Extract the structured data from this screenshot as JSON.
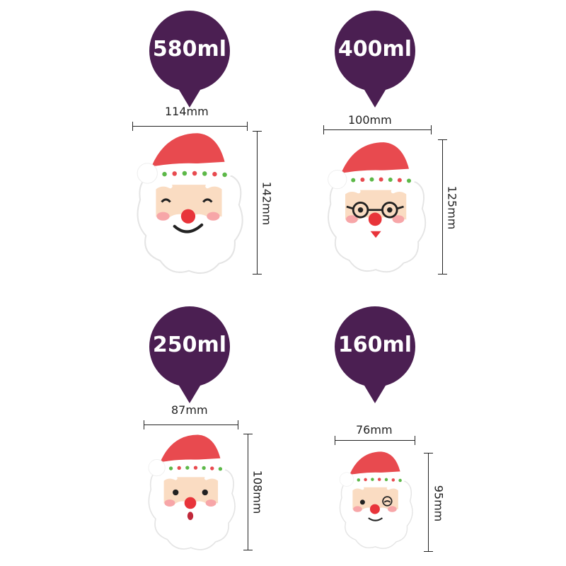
{
  "colors": {
    "pin": "#4b1f52",
    "hat": "#e84a4f",
    "skin": "#fadcc2",
    "nose": "#e8343a",
    "dot_green": "#5cb848",
    "dot_red": "#e84a4f"
  },
  "items": [
    {
      "volume": "580ml",
      "width": "114mm",
      "height": "142mm",
      "face": "smile"
    },
    {
      "volume": "400ml",
      "width": "100mm",
      "height": "125mm",
      "face": "glasses"
    },
    {
      "volume": "250ml",
      "width": "87mm",
      "height": "108mm",
      "face": "surprised"
    },
    {
      "volume": "160ml",
      "width": "76mm",
      "height": "95mm",
      "face": "wink"
    }
  ]
}
